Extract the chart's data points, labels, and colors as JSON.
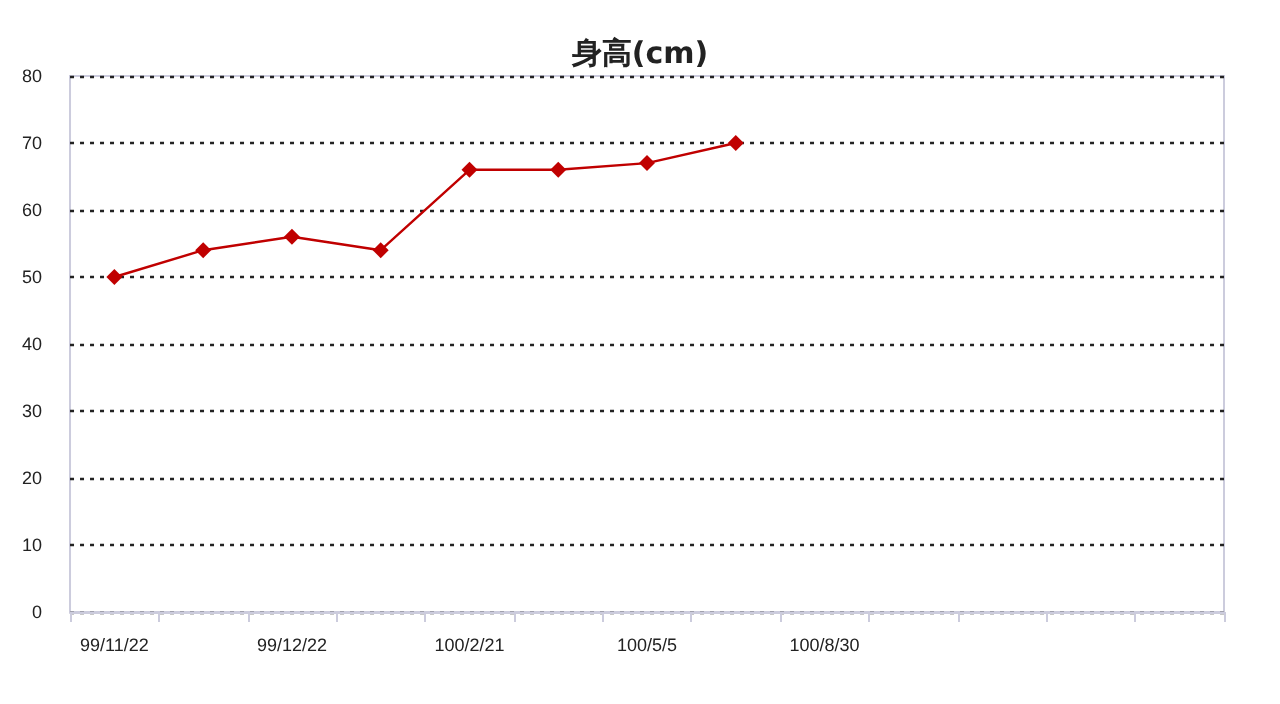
{
  "chart_data": {
    "type": "line",
    "title": "身高(cm)",
    "categories": [
      "99/11/22",
      null,
      "99/12/22",
      null,
      "100/2/21",
      null,
      "100/5/5",
      null,
      "100/8/30",
      null,
      null,
      null,
      null
    ],
    "series": [
      {
        "color": "#c00000",
        "values": [
          50,
          54,
          56,
          54,
          66,
          66,
          67,
          70,
          null,
          null,
          null,
          null,
          null
        ]
      }
    ],
    "ylim": [
      0,
      80
    ],
    "yticks": [
      0,
      10,
      20,
      30,
      40,
      50,
      60,
      70,
      80
    ],
    "grid": "y",
    "marker": "diamond",
    "line_style": "solid"
  }
}
